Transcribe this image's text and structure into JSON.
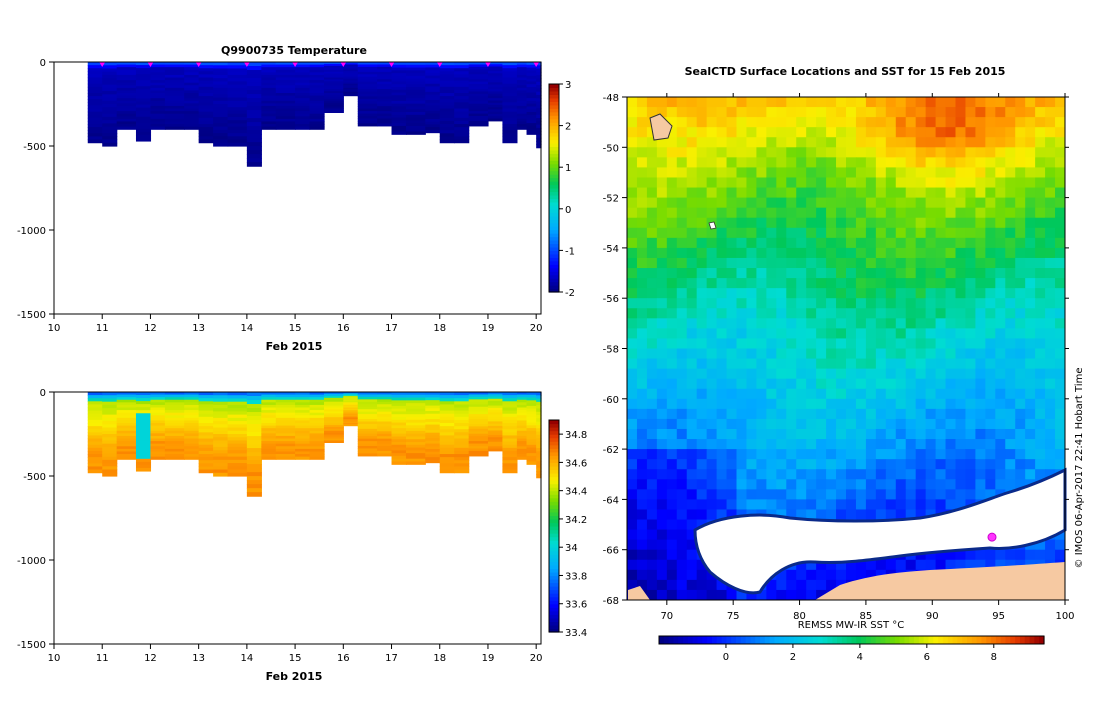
{
  "chart_data": [
    {
      "type": "heatmap",
      "title": "Q9900735  Temperature",
      "xlabel": "Feb 2015",
      "ylabel": "",
      "x_ticks": [
        10,
        11,
        12,
        13,
        14,
        15,
        16,
        17,
        18,
        19,
        20
      ],
      "y_ticks": [
        0,
        -500,
        -1000,
        -1500
      ],
      "xlim": [
        10,
        20.1
      ],
      "ylim": [
        -1500,
        0
      ],
      "colorbar": {
        "ticks": [
          3,
          2,
          1,
          0,
          -1,
          -2
        ],
        "range": [
          -2,
          3
        ]
      },
      "profile_markers": [
        11,
        12,
        13,
        14,
        15,
        16,
        17,
        18,
        19,
        20
      ],
      "profile_days": [
        10.7,
        11.0,
        11.3,
        11.7,
        12.0,
        12.3,
        12.7,
        13.0,
        13.3,
        13.6,
        14.0,
        14.3,
        14.6,
        15.0,
        15.3,
        15.6,
        16.0,
        16.3,
        16.7,
        17.0,
        17.3,
        17.7,
        18.0,
        18.3,
        18.6,
        19.0,
        19.3,
        19.6,
        19.8,
        20.0
      ],
      "profile_max_depths": [
        -480,
        -500,
        -400,
        -470,
        -400,
        -400,
        -400,
        -480,
        -500,
        -500,
        -620,
        -400,
        -400,
        -400,
        -400,
        -300,
        -200,
        -380,
        -380,
        -430,
        -430,
        -420,
        -480,
        -480,
        -380,
        -350,
        -480,
        -400,
        -430,
        -510
      ],
      "value_ranges": {
        "surface": [
          -1,
          0
        ],
        "deep": [
          -2,
          -1.5
        ]
      }
    },
    {
      "type": "heatmap",
      "title": "",
      "xlabel": "Feb 2015",
      "ylabel": "",
      "x_ticks": [
        10,
        11,
        12,
        13,
        14,
        15,
        16,
        17,
        18,
        19,
        20
      ],
      "y_ticks": [
        0,
        -500,
        -1000,
        -1500
      ],
      "xlim": [
        10,
        20.1
      ],
      "ylim": [
        -1500,
        0
      ],
      "colorbar": {
        "ticks": [
          34.8,
          34.6,
          34.4,
          34.2,
          34,
          33.8,
          33.6,
          33.4
        ],
        "range": [
          33.4,
          34.9
        ]
      },
      "value_ranges": {
        "surface": [
          33.6,
          33.9
        ],
        "deep": [
          34.5,
          34.7
        ]
      }
    },
    {
      "type": "heatmap",
      "title": "SealCTD Surface Locations and SST for 15 Feb 2015",
      "xlabel": "REMSS MW-IR SST °C",
      "x_ticks": [
        70,
        75,
        80,
        85,
        90,
        95,
        100
      ],
      "y_ticks": [
        -48,
        -50,
        -52,
        -54,
        -56,
        -58,
        -60,
        -62,
        -64,
        -66,
        -68
      ],
      "xlim": [
        67,
        100
      ],
      "ylim": [
        -68,
        -48
      ],
      "colorbar": {
        "ticks": [
          0,
          2,
          4,
          6,
          8
        ],
        "range": [
          -2,
          9.5
        ]
      },
      "seal_location": {
        "lon": 94.5,
        "lat": -65.5
      },
      "sst_pattern": "warm (6-8°C) in north near 48-50°S, cooling southward to -1°C near Antarctic coast at 65-68°S"
    }
  ],
  "watermark": "© IMOS 06-Apr-2017 22:41 Hobart Time"
}
